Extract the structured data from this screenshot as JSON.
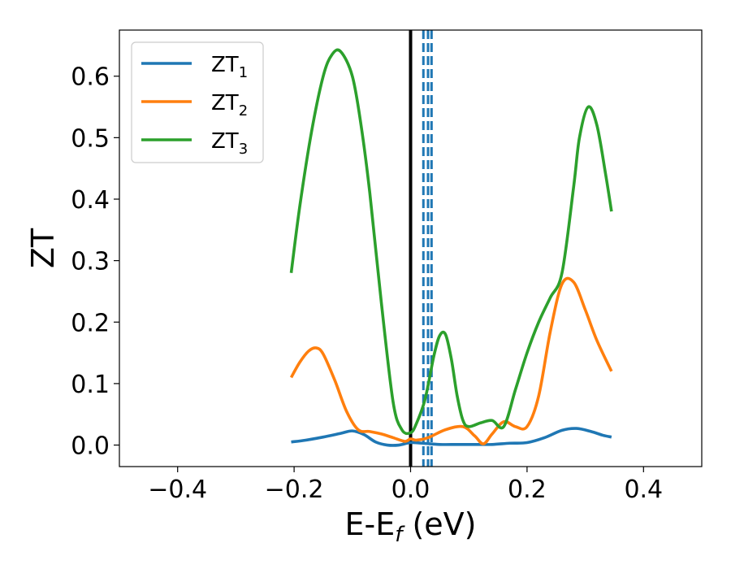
{
  "chart_data": {
    "type": "line",
    "title": "",
    "xlabel": "E-E",
    "xlabel_sub": "f",
    "xlabel_unit": " (eV)",
    "ylabel": "ZT",
    "xlim": [
      -0.5,
      0.5
    ],
    "ylim": [
      -0.035,
      0.675
    ],
    "xticks": [
      -0.4,
      -0.2,
      0.0,
      0.2,
      0.4
    ],
    "xtick_labels": [
      "−0.4",
      "−0.2",
      "0.0",
      "0.2",
      "0.4"
    ],
    "yticks": [
      0.0,
      0.1,
      0.2,
      0.3,
      0.4,
      0.5,
      0.6
    ],
    "ytick_labels": [
      "0.0",
      "0.1",
      "0.2",
      "0.3",
      "0.4",
      "0.5",
      "0.6"
    ],
    "grid": false,
    "legend_position": "top-left",
    "vertical_lines": [
      {
        "x": 0.0,
        "style": "solid",
        "color": "#000000"
      },
      {
        "x": 0.022,
        "style": "dashed",
        "color": "#1f77b4"
      },
      {
        "x": 0.03,
        "style": "dashed",
        "color": "#1f77b4"
      },
      {
        "x": 0.036,
        "style": "dashed",
        "color": "#1f77b4"
      }
    ],
    "series": [
      {
        "name": "ZT",
        "subscript": "1",
        "color": "#1f77b4",
        "x": [
          -0.205,
          -0.18,
          -0.15,
          -0.12,
          -0.1,
          -0.08,
          -0.06,
          -0.04,
          -0.02,
          0.0,
          0.02,
          0.05,
          0.08,
          0.11,
          0.14,
          0.17,
          0.2,
          0.23,
          0.26,
          0.285,
          0.31,
          0.33,
          0.345
        ],
        "values": [
          0.005,
          0.008,
          0.013,
          0.019,
          0.023,
          0.017,
          0.005,
          0.0,
          0.0,
          0.004,
          0.003,
          0.001,
          0.001,
          0.001,
          0.001,
          0.003,
          0.004,
          0.012,
          0.024,
          0.027,
          0.022,
          0.016,
          0.013
        ]
      },
      {
        "name": "ZT",
        "subscript": "2",
        "color": "#ff7f0e",
        "x": [
          -0.205,
          -0.19,
          -0.175,
          -0.162,
          -0.15,
          -0.13,
          -0.11,
          -0.09,
          -0.07,
          -0.05,
          -0.03,
          -0.01,
          0.0,
          0.01,
          0.03,
          0.06,
          0.09,
          0.11,
          0.125,
          0.14,
          0.16,
          0.18,
          0.2,
          0.22,
          0.24,
          0.26,
          0.28,
          0.3,
          0.32,
          0.345
        ],
        "values": [
          0.11,
          0.135,
          0.153,
          0.158,
          0.148,
          0.105,
          0.055,
          0.025,
          0.022,
          0.018,
          0.012,
          0.006,
          0.01,
          0.008,
          0.012,
          0.025,
          0.03,
          0.015,
          0.002,
          0.018,
          0.038,
          0.03,
          0.03,
          0.08,
          0.185,
          0.262,
          0.265,
          0.22,
          0.17,
          0.12
        ]
      },
      {
        "name": "ZT",
        "subscript": "3",
        "color": "#2ca02c",
        "x": [
          -0.205,
          -0.19,
          -0.17,
          -0.15,
          -0.135,
          -0.12,
          -0.1,
          -0.085,
          -0.07,
          -0.05,
          -0.03,
          -0.015,
          0.0,
          0.01,
          0.025,
          0.04,
          0.05,
          0.06,
          0.07,
          0.08,
          0.09,
          0.1,
          0.12,
          0.14,
          0.16,
          0.18,
          0.2,
          0.22,
          0.24,
          0.26,
          0.28,
          0.29,
          0.305,
          0.32,
          0.335,
          0.345
        ],
        "values": [
          0.28,
          0.39,
          0.51,
          0.6,
          0.635,
          0.64,
          0.6,
          0.52,
          0.41,
          0.23,
          0.07,
          0.025,
          0.02,
          0.035,
          0.075,
          0.145,
          0.178,
          0.18,
          0.14,
          0.08,
          0.04,
          0.03,
          0.036,
          0.04,
          0.03,
          0.09,
          0.15,
          0.2,
          0.24,
          0.28,
          0.42,
          0.5,
          0.55,
          0.52,
          0.44,
          0.38
        ]
      }
    ]
  }
}
